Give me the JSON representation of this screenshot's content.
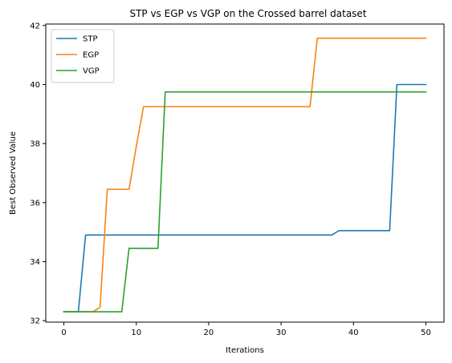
{
  "chart_data": {
    "type": "line",
    "title": "STP vs EGP vs VGP on the Crossed barrel dataset",
    "xlabel": "Iterations",
    "ylabel": "Best Observed Value",
    "xlim": [
      -2.5,
      52.5
    ],
    "ylim": [
      31.95,
      42.05
    ],
    "xticks": [
      0,
      10,
      20,
      30,
      40,
      50
    ],
    "yticks": [
      32,
      34,
      36,
      38,
      40,
      42
    ],
    "grid": false,
    "legend_position": "top-left",
    "series": [
      {
        "name": "STP",
        "color": "#1f77b4",
        "x": [
          0,
          2,
          3,
          37,
          38,
          45,
          46,
          50
        ],
        "y": [
          32.3,
          32.3,
          34.9,
          34.9,
          35.05,
          35.05,
          40.0,
          40.0
        ]
      },
      {
        "name": "EGP",
        "color": "#ff7f0e",
        "x": [
          0,
          4,
          5,
          6,
          9,
          10,
          11,
          34,
          35,
          50
        ],
        "y": [
          32.3,
          32.3,
          32.45,
          36.45,
          36.45,
          37.9,
          39.25,
          39.25,
          41.57,
          41.57
        ]
      },
      {
        "name": "VGP",
        "color": "#2ca02c",
        "x": [
          0,
          8,
          9,
          13,
          14,
          50
        ],
        "y": [
          32.3,
          32.3,
          34.45,
          34.45,
          39.75,
          39.75
        ]
      }
    ]
  }
}
